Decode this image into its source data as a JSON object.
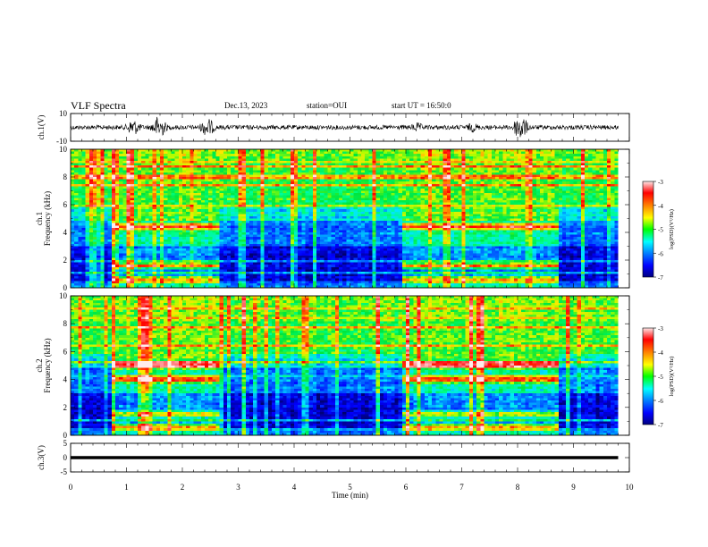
{
  "header": {
    "title": "VLF Spectra",
    "date": "Dec.13, 2023",
    "station": "station=OUI",
    "start": "start UT =  16:50:0"
  },
  "colors": {
    "ch1_trace": "#000000",
    "ch3_trace": "#000000",
    "colormap": [
      "#000080",
      "#0000ff",
      "#0080ff",
      "#00ffff",
      "#00ff00",
      "#ffff00",
      "#ff8000",
      "#ff0000",
      "#ffffff"
    ]
  },
  "chart_data": [
    {
      "id": "ch1-waveform",
      "type": "line",
      "ylabel": "ch.1(V)",
      "ylim": [
        -10,
        10
      ],
      "xlim": [
        0,
        10
      ],
      "y_ticks": [
        "10",
        "-10"
      ],
      "baseline_v": 0,
      "bursts": [
        {
          "t": 1.12,
          "amp_v": 6
        },
        {
          "t": 1.58,
          "amp_v": 9
        },
        {
          "t": 2.45,
          "amp_v": 7
        },
        {
          "t": 6.2,
          "amp_v": 3
        },
        {
          "t": 7.2,
          "amp_v": 3
        },
        {
          "t": 8.05,
          "amp_v": 10
        }
      ],
      "data_end_min": 9.8
    },
    {
      "id": "ch1-spectrogram",
      "type": "heatmap",
      "ylabel": "ch.1\nFrequency (kHz)",
      "xlim": [
        0,
        10
      ],
      "ylim": [
        0,
        10
      ],
      "y_ticks": [
        "0",
        "2",
        "4",
        "6",
        "8",
        "10"
      ],
      "colorbar": {
        "label": "log(PSD)(V²/Hz)",
        "ticks": [
          "-3",
          "-4",
          "-5",
          "-6",
          "-7"
        ],
        "range": [
          -7,
          -3
        ]
      },
      "active_intervals_min": [
        [
          0.72,
          2.65
        ],
        [
          5.95,
          8.7
        ]
      ],
      "emission_bands_khz": [
        4.4,
        1.6,
        0.6
      ],
      "data_end_min": 9.8
    },
    {
      "id": "ch2-spectrogram",
      "type": "heatmap",
      "ylabel": "ch.2\nFrequency (kHz)",
      "xlim": [
        0,
        10
      ],
      "ylim": [
        0,
        10
      ],
      "y_ticks": [
        "0",
        "2",
        "4",
        "6",
        "8",
        "10"
      ],
      "colorbar": {
        "label": "log(PSD)(V²/Hz)",
        "ticks": [
          "-3",
          "-4",
          "-5",
          "-6",
          "-7"
        ],
        "range": [
          -7,
          -3
        ]
      },
      "active_intervals_min": [
        [
          0.72,
          2.65
        ],
        [
          5.95,
          8.7
        ]
      ],
      "emission_bands_khz": [
        5.0,
        4.0,
        1.5,
        0.6
      ],
      "data_end_min": 9.8
    },
    {
      "id": "ch3-waveform",
      "type": "line",
      "ylabel": "ch.3(V)",
      "ylim": [
        -5,
        5
      ],
      "xlim": [
        0,
        10
      ],
      "y_ticks": [
        "5",
        "0",
        "-5"
      ],
      "baseline_v": 0,
      "data_end_min": 9.8
    }
  ],
  "x_axis": {
    "label": "Time (min)",
    "ticks": [
      "0",
      "1",
      "2",
      "3",
      "4",
      "5",
      "6",
      "7",
      "8",
      "9",
      "10"
    ]
  }
}
